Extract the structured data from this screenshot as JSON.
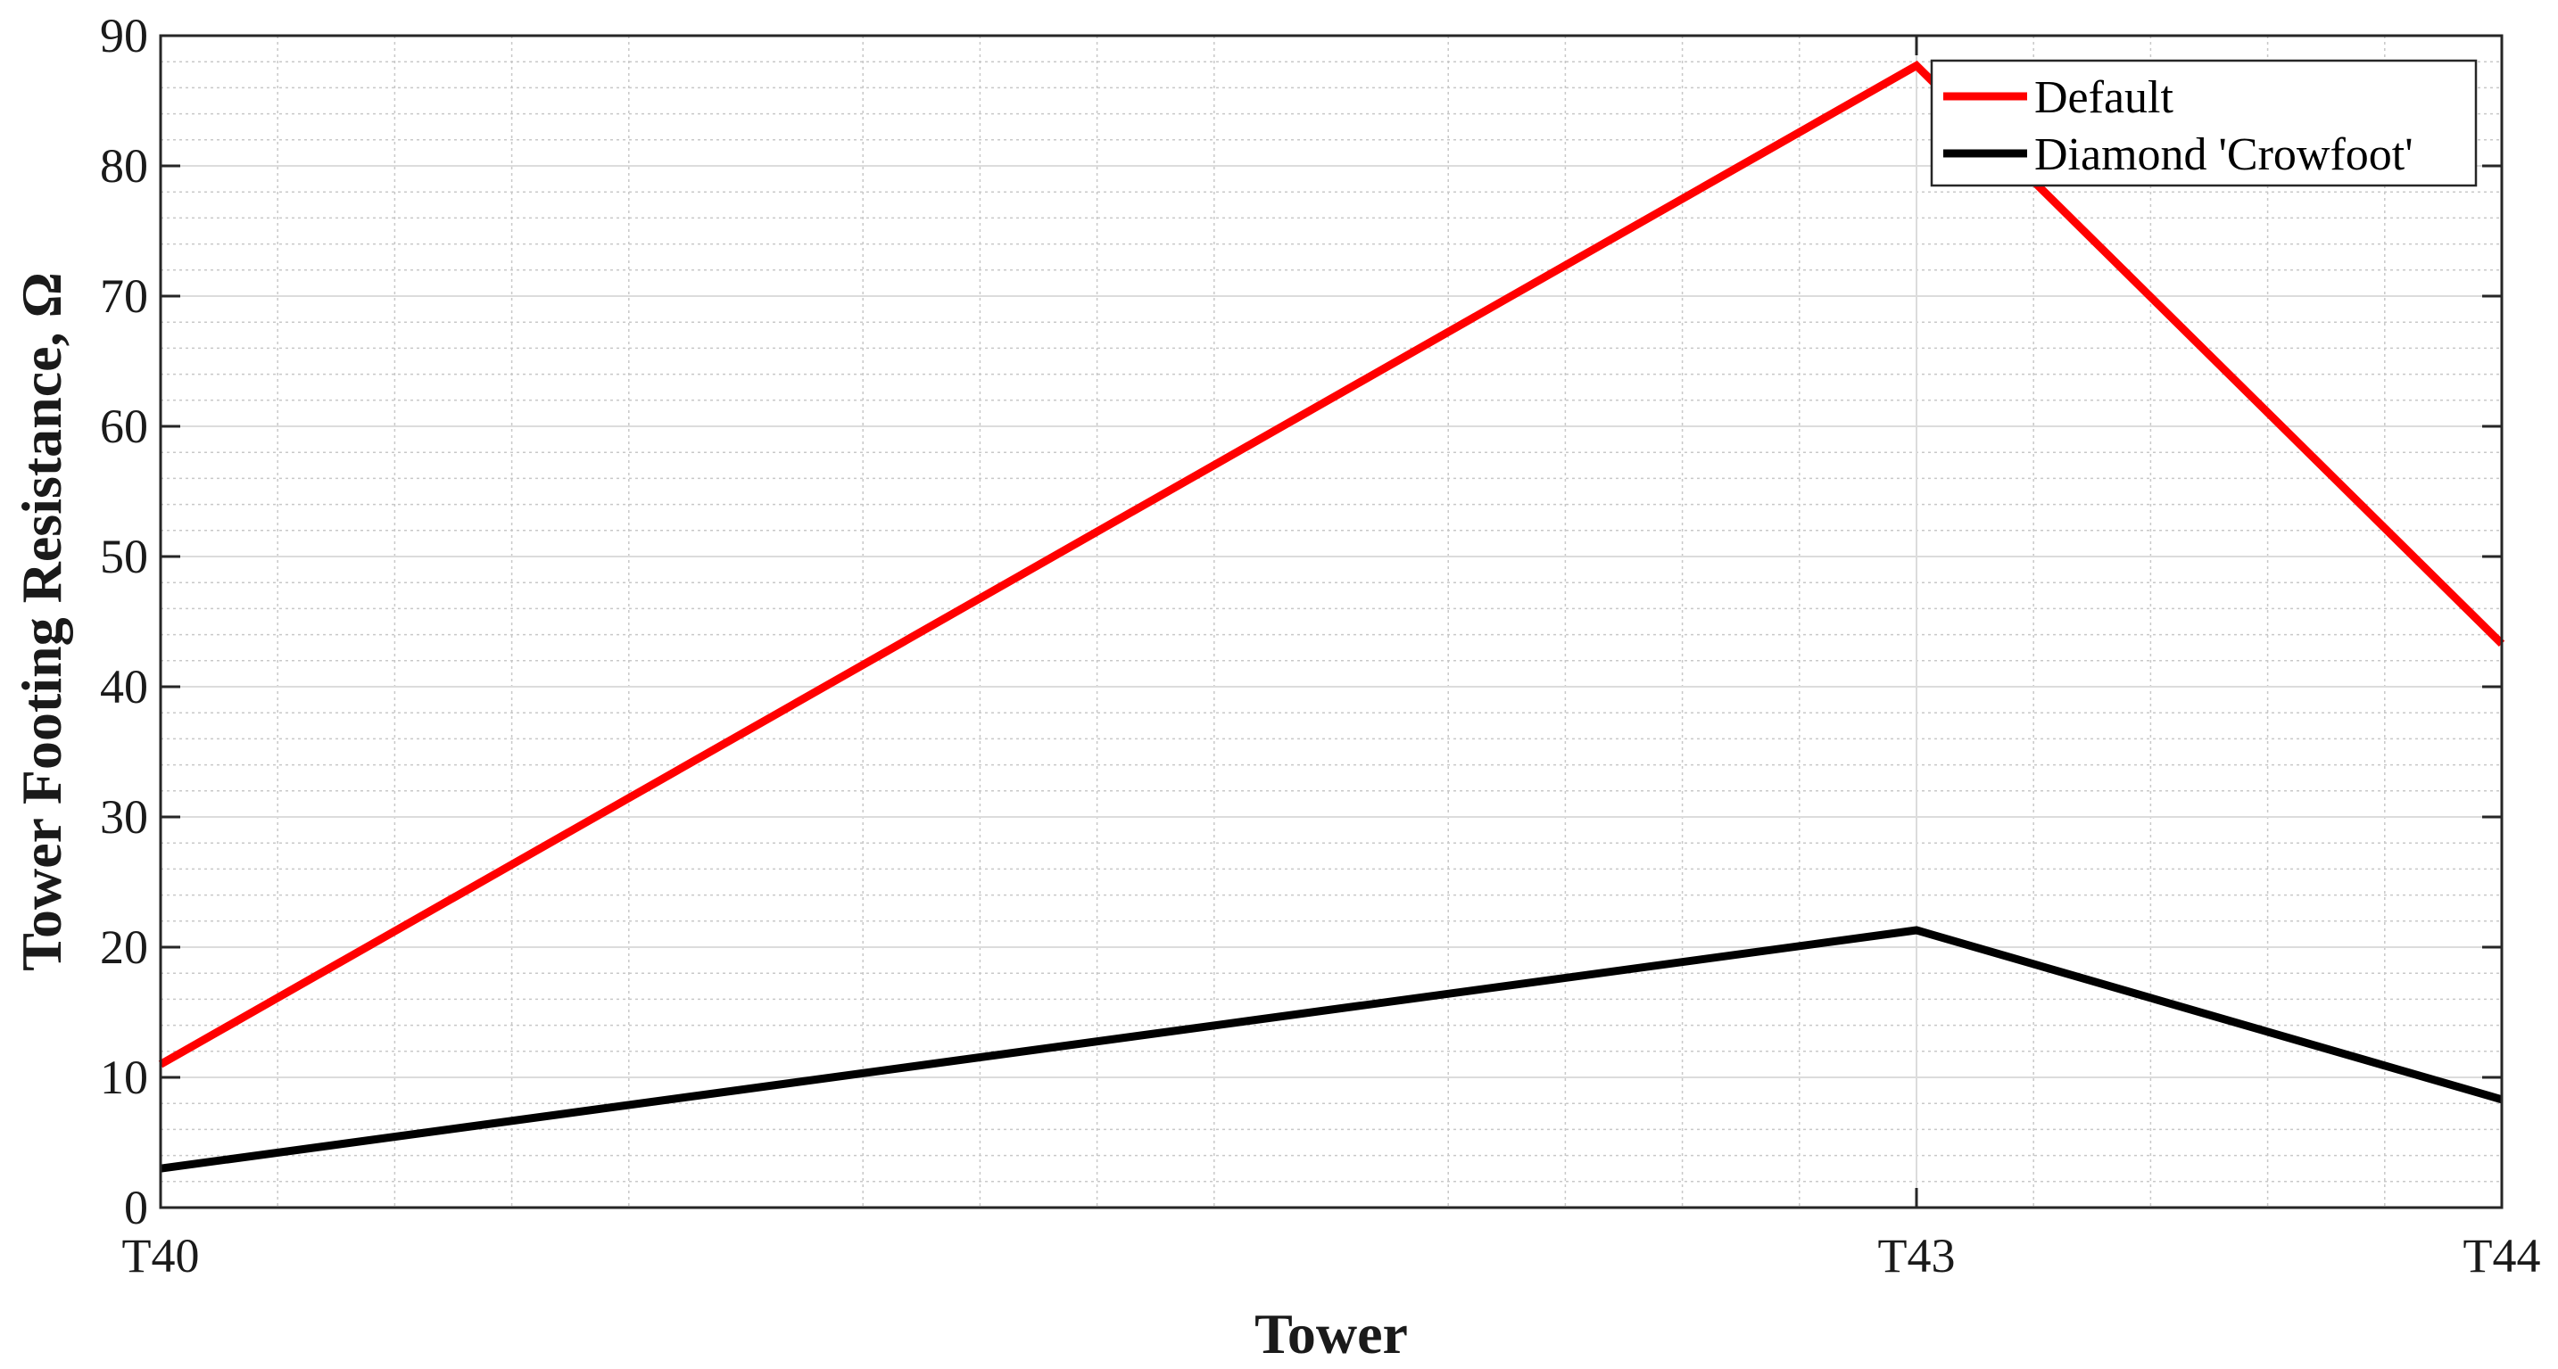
{
  "chart_data": {
    "type": "line",
    "title": "",
    "xlabel": "Tower",
    "ylabel": "Tower Footing Resistance, Ω",
    "x": [
      40,
      43,
      44
    ],
    "xlim": [
      40,
      44
    ],
    "x_ticks": [
      40,
      43,
      44
    ],
    "x_tick_labels": [
      "T40",
      "T43",
      "T44"
    ],
    "ylim": [
      0,
      90
    ],
    "y_ticks": [
      0,
      10,
      20,
      30,
      40,
      50,
      60,
      70,
      80,
      90
    ],
    "y_tick_labels": [
      "0",
      "10",
      "20",
      "30",
      "40",
      "50",
      "60",
      "70",
      "80",
      "90"
    ],
    "grid": true,
    "minor_grid": true,
    "legend_position": "top-right",
    "series": [
      {
        "name": "Default",
        "color": "#ff0000",
        "values": [
          11,
          87.7,
          43.3
        ]
      },
      {
        "name": "Diamond 'Crowfoot'",
        "color": "#000000",
        "values": [
          3,
          21.3,
          8.3
        ]
      }
    ]
  }
}
